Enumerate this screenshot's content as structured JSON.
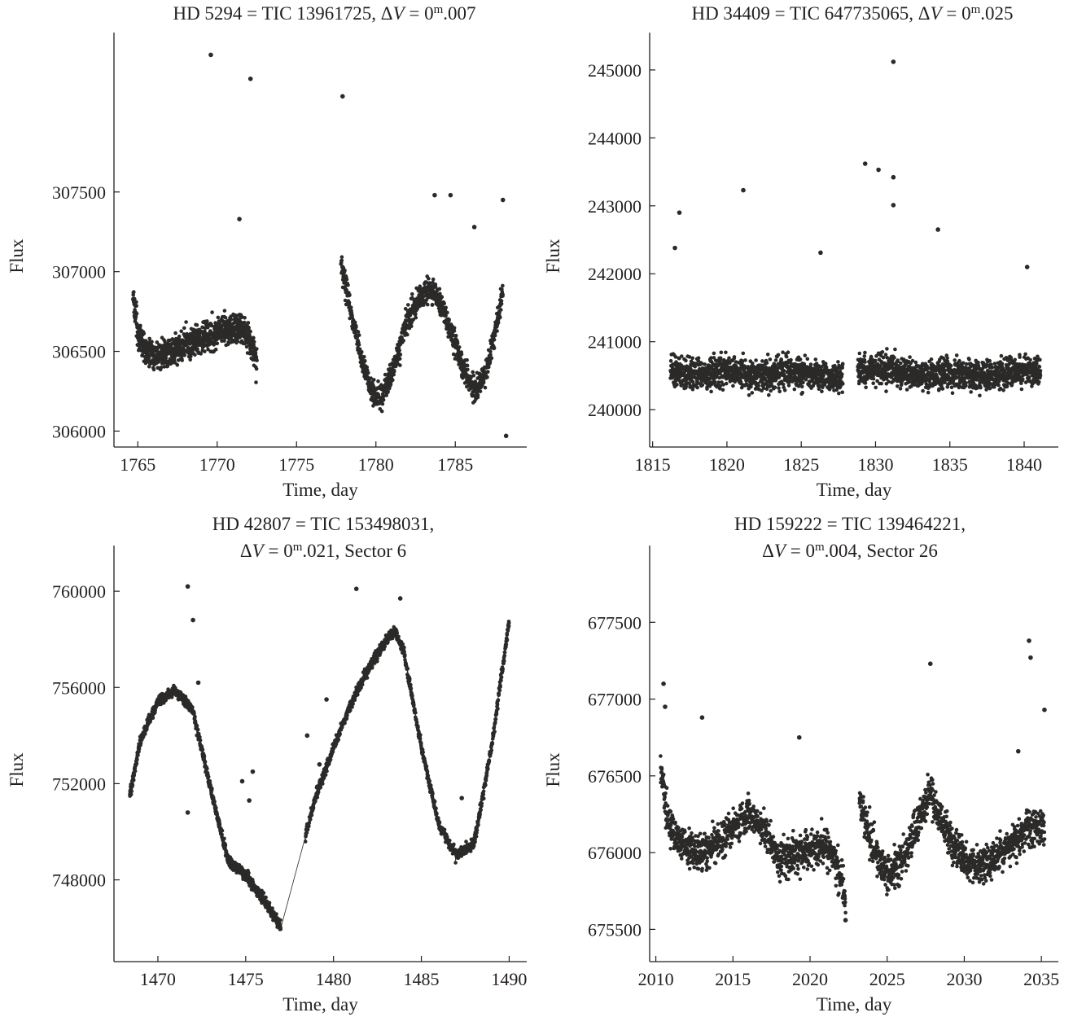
{
  "chart_data": [
    {
      "type": "scatter",
      "title": {
        "main": "HD 5294 = TIC 13961725, ",
        "dv": "0",
        "mag": "m",
        "rest": ".007"
      },
      "xlabel": "Time, day",
      "ylabel": "Flux",
      "xlim": [
        1763.5,
        1789.5
      ],
      "ylim": [
        305900,
        308500
      ],
      "xticks": [
        1765,
        1770,
        1775,
        1780,
        1785
      ],
      "yticks": [
        306000,
        306500,
        307000,
        307500
      ],
      "ytick_labels": [
        "306000",
        "306500",
        "307000",
        "307500"
      ],
      "marker_color": "#2b2a29",
      "connected": false,
      "segments": [
        {
          "x": [
            1764.7,
            1765.0,
            1765.5,
            1766.5,
            1768.0,
            1769.5,
            1770.5,
            1771.3,
            1772.0,
            1772.5
          ],
          "y": [
            306850,
            306620,
            306500,
            306470,
            306540,
            306600,
            306640,
            306650,
            306600,
            306450
          ],
          "scatter": 120,
          "n": 900
        },
        {
          "x": [
            1777.8,
            1778.3,
            1779.0,
            1779.7,
            1780.3,
            1781.0,
            1782.0,
            1783.0,
            1783.7,
            1784.5,
            1785.5,
            1786.3,
            1787.0,
            1787.7,
            1788.0
          ],
          "y": [
            307050,
            306800,
            306500,
            306250,
            306200,
            306350,
            306700,
            306880,
            306870,
            306700,
            306400,
            306250,
            306400,
            306700,
            306900
          ],
          "scatter": 100,
          "n": 1000
        }
      ],
      "outliers": [
        [
          1769.6,
          308360
        ],
        [
          1772.1,
          308210
        ],
        [
          1777.9,
          308100
        ],
        [
          1783.7,
          307480
        ],
        [
          1784.7,
          307480
        ],
        [
          1786.2,
          307280
        ],
        [
          1788.0,
          307450
        ],
        [
          1771.4,
          307330
        ],
        [
          1788.2,
          305970
        ]
      ]
    },
    {
      "type": "scatter",
      "title": {
        "main": "HD 34409 = TIC 647735065, ",
        "dv": "0",
        "mag": "m",
        "rest": ".025"
      },
      "xlabel": "Time, day",
      "ylabel": "Flux",
      "xlim": [
        1814.8,
        1842.3
      ],
      "ylim": [
        239450,
        245550
      ],
      "xticks": [
        1815,
        1820,
        1825,
        1830,
        1835,
        1840
      ],
      "yticks": [
        240000,
        241000,
        242000,
        243000,
        244000,
        245000
      ],
      "ytick_labels": [
        "240000",
        "241000",
        "242000",
        "243000",
        "244000",
        "245000"
      ],
      "marker_color": "#2b2a29",
      "connected": false,
      "segments": [
        {
          "x": [
            1816.2,
            1818.0,
            1820.0,
            1822.0,
            1824.0,
            1826.0,
            1827.8
          ],
          "y": [
            240550,
            240500,
            240600,
            240500,
            240550,
            240500,
            240450
          ],
          "scatter": 280,
          "n": 1100
        },
        {
          "x": [
            1828.8,
            1831.0,
            1833.0,
            1835.0,
            1837.0,
            1839.0,
            1841.1
          ],
          "y": [
            240550,
            240600,
            240500,
            240550,
            240500,
            240550,
            240550
          ],
          "scatter": 280,
          "n": 1200
        }
      ],
      "outliers": [
        [
          1831.2,
          245120
        ],
        [
          1829.3,
          243620
        ],
        [
          1830.2,
          243530
        ],
        [
          1831.2,
          243420
        ],
        [
          1831.2,
          243010
        ],
        [
          1816.8,
          242900
        ],
        [
          1821.1,
          243230
        ],
        [
          1826.3,
          242310
        ],
        [
          1834.2,
          242650
        ],
        [
          1816.5,
          242380
        ],
        [
          1840.2,
          242100
        ]
      ]
    },
    {
      "type": "scatter",
      "title": {
        "main": "HD 42807 = TIC 153498031,",
        "dv": "0",
        "mag": "m",
        "rest": ".021, Sector 6"
      },
      "xlabel": "Time, day",
      "ylabel": "Flux",
      "xlim": [
        1467.5,
        1491.0
      ],
      "ylim": [
        744600,
        761900
      ],
      "xticks": [
        1470,
        1475,
        1480,
        1485,
        1490
      ],
      "yticks": [
        748000,
        752000,
        756000,
        760000
      ],
      "ytick_labels": [
        "748000",
        "752000",
        "756000",
        "760000"
      ],
      "marker_color": "#2b2a29",
      "connected": true,
      "segments": [
        {
          "x": [
            1468.4,
            1469.0,
            1470.0,
            1471.0,
            1472.0,
            1473.0,
            1474.0,
            1475.0,
            1476.0,
            1477.0
          ],
          "y": [
            751500,
            753800,
            755400,
            755900,
            755000,
            751800,
            748800,
            748200,
            747200,
            746000
          ],
          "scatter": 280,
          "n": 900
        },
        {
          "x": [
            1478.4,
            1479.0,
            1480.0,
            1481.0,
            1482.0,
            1483.0,
            1483.5,
            1484.0,
            1485.0,
            1486.0,
            1487.0,
            1488.0,
            1489.0,
            1490.0
          ],
          "y": [
            749800,
            751500,
            753500,
            755300,
            756800,
            758000,
            758300,
            757500,
            753500,
            750300,
            749000,
            749500,
            753500,
            758800
          ],
          "scatter": 280,
          "n": 1100
        }
      ],
      "outliers": [
        [
          1471.7,
          760200
        ],
        [
          1471.7,
          750800
        ],
        [
          1472.0,
          758800
        ],
        [
          1472.3,
          756200
        ],
        [
          1474.8,
          752100
        ],
        [
          1475.2,
          751300
        ],
        [
          1475.4,
          752500
        ],
        [
          1478.5,
          754000
        ],
        [
          1479.2,
          752800
        ],
        [
          1479.6,
          755500
        ],
        [
          1481.3,
          760100
        ],
        [
          1483.8,
          759700
        ],
        [
          1487.3,
          751400
        ]
      ]
    },
    {
      "type": "scatter",
      "title": {
        "main": "HD 159222 = TIC 139464221,",
        "dv": "0",
        "mag": "m",
        "rest": ".004, Sector 26"
      },
      "xlabel": "Time, day",
      "ylabel": "Flux",
      "xlim": [
        2009.6,
        2036.1
      ],
      "ylim": [
        675290,
        678000
      ],
      "xticks": [
        2010,
        2015,
        2020,
        2025,
        2030,
        2035
      ],
      "yticks": [
        675500,
        676000,
        676500,
        677000,
        677500
      ],
      "ytick_labels": [
        "675500",
        "676000",
        "676500",
        "677000",
        "677500"
      ],
      "marker_color": "#2b2a29",
      "connected": false,
      "segments": [
        {
          "x": [
            2010.3,
            2010.7,
            2011.5,
            2013.0,
            2014.5,
            2016.0,
            2017.0,
            2018.0,
            2019.5,
            2021.0,
            2021.8,
            2022.3
          ],
          "y": [
            676550,
            676250,
            676050,
            676000,
            676100,
            676250,
            676150,
            675950,
            676000,
            676050,
            675900,
            675700
          ],
          "scatter": 150,
          "n": 1000
        },
        {
          "x": [
            2023.2,
            2024.0,
            2025.0,
            2026.0,
            2027.0,
            2027.8,
            2028.5,
            2029.5,
            2031.0,
            2032.5,
            2034.0,
            2035.2
          ],
          "y": [
            676350,
            676050,
            675850,
            675950,
            676200,
            676400,
            676200,
            676000,
            675900,
            676000,
            676150,
            676150
          ],
          "scatter": 150,
          "n": 1000
        }
      ],
      "outliers": [
        [
          2010.5,
          677100
        ],
        [
          2010.6,
          676950
        ],
        [
          2013.0,
          676880
        ],
        [
          2027.8,
          677230
        ],
        [
          2034.2,
          677380
        ],
        [
          2034.3,
          677270
        ],
        [
          2035.2,
          676930
        ],
        [
          2019.3,
          676750
        ],
        [
          2033.5,
          676660
        ],
        [
          2022.3,
          675560
        ]
      ]
    }
  ]
}
